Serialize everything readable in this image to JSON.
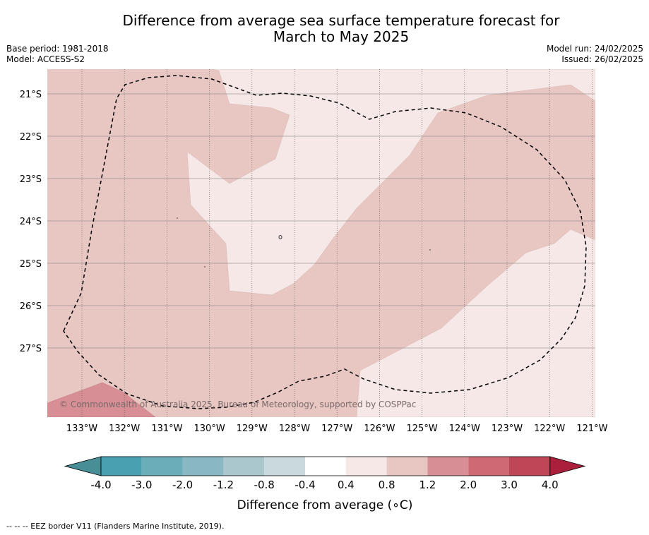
{
  "title_line1": "Difference from average sea surface temperature forecast for",
  "title_line2": "March to May 2025",
  "base_period": "Base period: 1981-2018",
  "model": "Model: ACCESS-S2",
  "model_run": "Model run: 24/02/2025",
  "issued": "Issued: 26/02/2025",
  "copyright": "© Commonwealth of Australia 2025, Bureau of Meteorology, supported by COSPPac",
  "footnote": "--  --  -- EEZ border V11 (Flanders Marine Institute, 2019).",
  "map": {
    "lon_labels": [
      "133°W",
      "132°W",
      "131°W",
      "130°W",
      "129°W",
      "128°W",
      "127°W",
      "126°W",
      "125°W",
      "124°W",
      "123°W",
      "122°W",
      "121°W"
    ],
    "lat_labels": [
      "21°S",
      "22°S",
      "23°S",
      "24°S",
      "25°S",
      "26°S",
      "27°S"
    ],
    "fill_colors": {
      "0.4_to_0.8": "#f5e8e7",
      "0.8_to_1.2": "#e8c7c3",
      "1.2_to_2.0": "#d78e95"
    }
  },
  "colorbar": {
    "label": "Difference from average (∘C)",
    "ticks": [
      "-4.0",
      "-3.0",
      "-2.0",
      "-1.2",
      "-0.8",
      "-0.4",
      "0.4",
      "0.8",
      "1.2",
      "2.0",
      "3.0",
      "4.0"
    ],
    "colors": [
      "#488e96",
      "#48a0b0",
      "#6badb9",
      "#89b7c3",
      "#a9c7cc",
      "#cad9dc",
      "#ffffff",
      "#f5e8e7",
      "#e8c7c3",
      "#d78e95",
      "#cd6a74",
      "#be4656",
      "#aa1f3c"
    ]
  }
}
